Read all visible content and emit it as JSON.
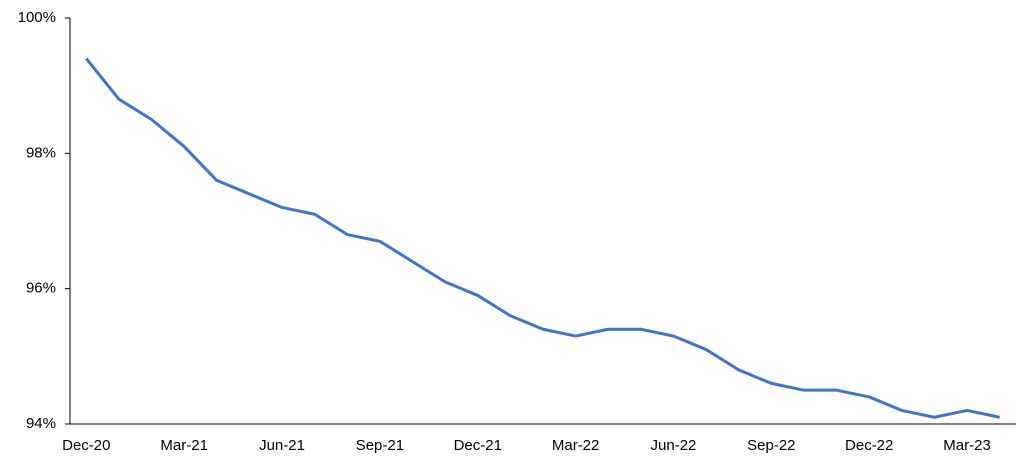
{
  "chart_data": {
    "type": "line",
    "categories": [
      "Dec-20",
      null,
      null,
      "Mar-21",
      null,
      null,
      "Jun-21",
      null,
      null,
      "Sep-21",
      null,
      null,
      "Dec-21",
      null,
      null,
      "Mar-22",
      null,
      null,
      "Jun-22",
      null,
      null,
      "Sep-22",
      null,
      null,
      "Dec-22",
      null,
      null,
      "Mar-23",
      null
    ],
    "series": [
      {
        "color": "#4472c4",
        "values": [
          99.4,
          98.8,
          98.5,
          98.1,
          97.6,
          97.4,
          97.2,
          97.1,
          96.8,
          96.7,
          96.4,
          96.1,
          95.9,
          95.6,
          95.4,
          95.3,
          95.4,
          95.4,
          95.3,
          95.1,
          94.8,
          94.6,
          94.5,
          94.5,
          94.4,
          94.2,
          94.1,
          94.2,
          94.1
        ]
      }
    ],
    "ylim": [
      94,
      100
    ],
    "yticks": [
      {
        "value": 94,
        "label": "94%"
      },
      {
        "value": 96,
        "label": "96%"
      },
      {
        "value": 98,
        "label": "98%"
      },
      {
        "value": 100,
        "label": "100%"
      }
    ]
  }
}
